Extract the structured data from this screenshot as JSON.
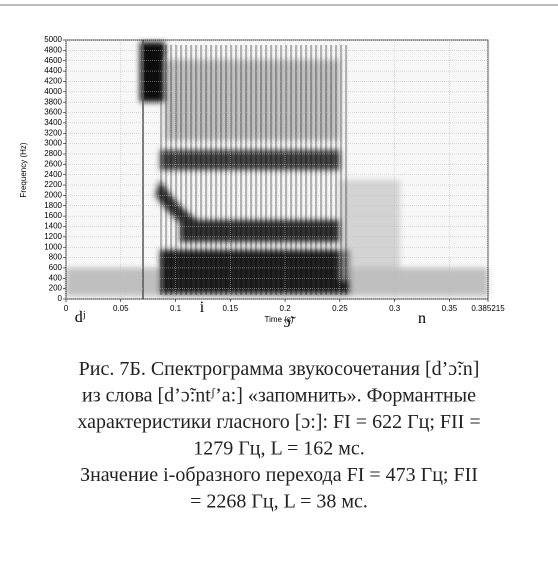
{
  "chart_data": {
    "type": "spectrogram",
    "xlabel": "Time (s)",
    "ylabel": "Frequency (Hz)",
    "xlim": [
      0,
      0.385215
    ],
    "ylim": [
      0,
      5000
    ],
    "xticks": [
      0,
      0.05,
      0.1,
      0.15,
      0.2,
      0.25,
      0.3,
      0.35,
      0.385215
    ],
    "yticks": [
      0,
      200,
      400,
      600,
      800,
      1000,
      1200,
      1400,
      1600,
      1800,
      2000,
      2200,
      2400,
      2600,
      2800,
      3000,
      3200,
      3400,
      3600,
      3800,
      4000,
      4200,
      4400,
      4600,
      4800,
      5000
    ],
    "grid": true,
    "segments": [
      "dʲ",
      "i",
      "ɔ̃",
      "n"
    ]
  },
  "caption": {
    "lines": [
      "Рис. 7Б. Спектрограмма звукосочетания [d’ɔ̃:n]",
      "из слова [d’ɔ̃:ntᶴ’a:] «запомнить». Формантные",
      "характеристики гласного [ɔ:]: FI = 622 Гц; FII =",
      "1279 Гц, L = 162 мс.",
      "Значение i-образного перехода FI = 473 Гц; FII",
      "= 2268 Гц, L = 38 мс."
    ]
  }
}
